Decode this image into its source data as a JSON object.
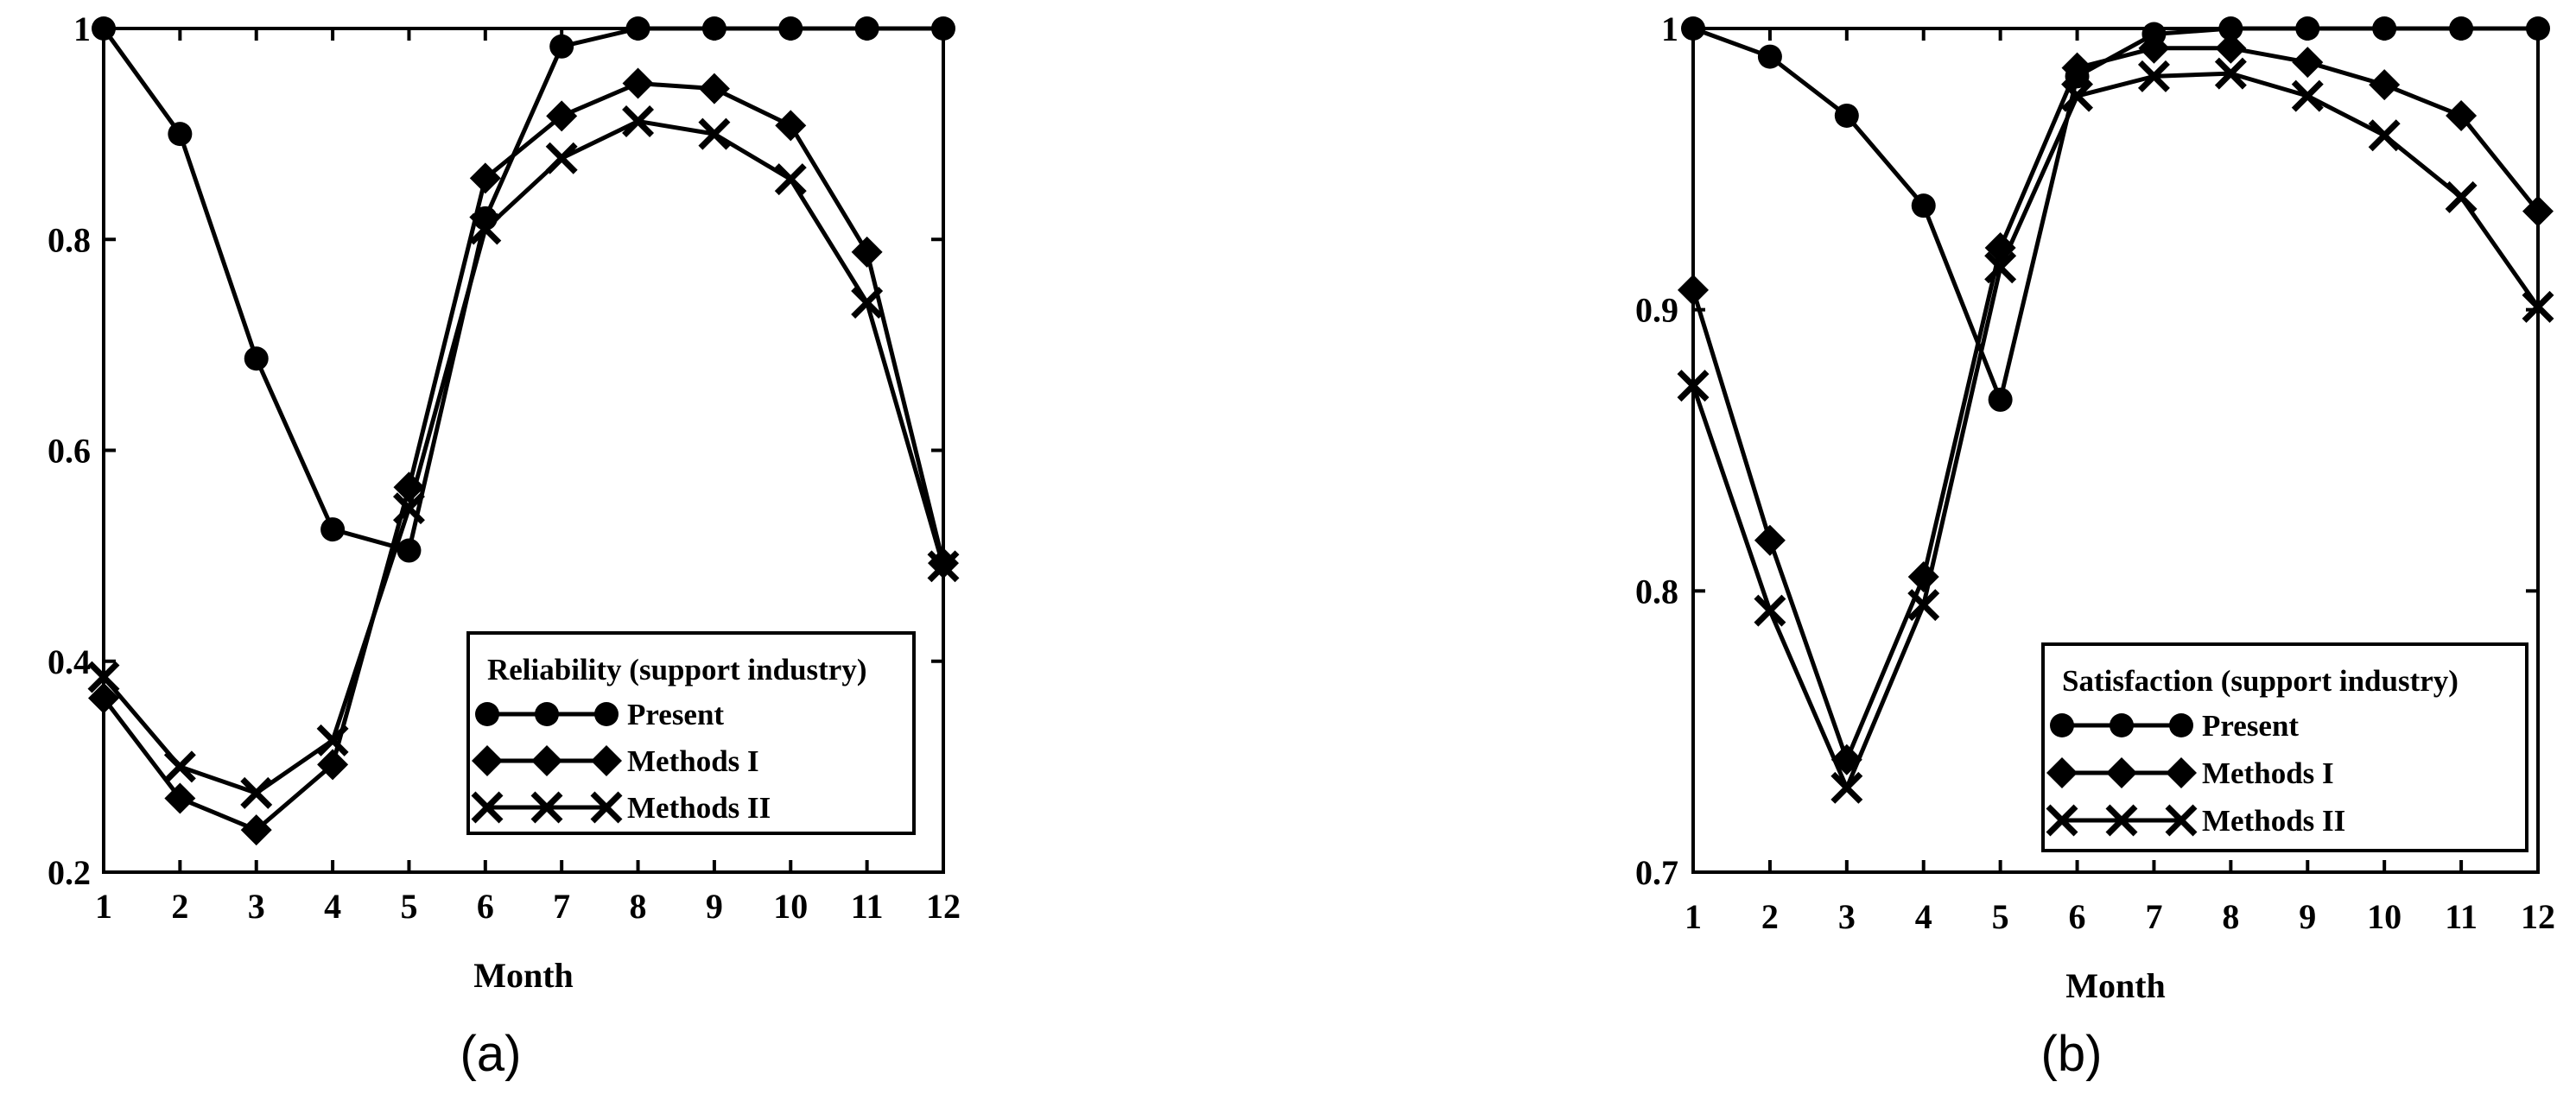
{
  "chart_data": [
    {
      "type": "line",
      "caption": "(a)",
      "xlabel": "Month",
      "ylabel": "",
      "x": [
        1,
        2,
        3,
        4,
        5,
        6,
        7,
        8,
        9,
        10,
        11,
        12
      ],
      "xticks": [
        "1",
        "2",
        "3",
        "4",
        "5",
        "6",
        "7",
        "8",
        "9",
        "10",
        "11",
        "12"
      ],
      "ylim": [
        0.2,
        1.0
      ],
      "yticks": [
        0.2,
        0.4,
        0.6,
        0.8,
        1.0
      ],
      "ytick_labels": [
        "0.2",
        "0.4",
        "0.6",
        "0.8",
        "1"
      ],
      "grid": false,
      "legend": {
        "title": "Reliability (support industry)",
        "placement": "bottom-right"
      },
      "series": [
        {
          "name": "Present",
          "marker": "circle",
          "values": [
            1.0,
            0.9,
            0.687,
            0.525,
            0.505,
            0.82,
            0.983,
            1.0,
            1.0,
            1.0,
            1.0,
            1.0
          ]
        },
        {
          "name": "Methods I",
          "marker": "diamond",
          "values": [
            0.365,
            0.27,
            0.24,
            0.302,
            0.565,
            0.858,
            0.917,
            0.948,
            0.943,
            0.908,
            0.788,
            0.493
          ]
        },
        {
          "name": "Methods II",
          "marker": "x",
          "values": [
            0.385,
            0.3,
            0.275,
            0.325,
            0.545,
            0.81,
            0.877,
            0.912,
            0.9,
            0.857,
            0.74,
            0.49
          ]
        }
      ]
    },
    {
      "type": "line",
      "caption": "(b)",
      "xlabel": "Month",
      "ylabel": "",
      "x": [
        1,
        2,
        3,
        4,
        5,
        6,
        7,
        8,
        9,
        10,
        11,
        12
      ],
      "xticks": [
        "1",
        "2",
        "3",
        "4",
        "5",
        "6",
        "7",
        "8",
        "9",
        "10",
        "11",
        "12"
      ],
      "ylim": [
        0.7,
        1.0
      ],
      "yticks": [
        0.7,
        0.8,
        0.9,
        1.0
      ],
      "ytick_labels": [
        "0.7",
        "0.8",
        "0.9",
        "1"
      ],
      "grid": false,
      "legend": {
        "title": "Satisfaction (support industry)",
        "placement": "bottom-right"
      },
      "series": [
        {
          "name": "Present",
          "marker": "circle",
          "values": [
            1.0,
            0.99,
            0.969,
            0.937,
            0.868,
            0.983,
            0.998,
            1.0,
            1.0,
            1.0,
            1.0,
            1.0
          ]
        },
        {
          "name": "Methods I",
          "marker": "diamond",
          "values": [
            0.907,
            0.818,
            0.74,
            0.805,
            0.922,
            0.986,
            0.993,
            0.993,
            0.988,
            0.98,
            0.969,
            0.935
          ]
        },
        {
          "name": "Methods II",
          "marker": "x",
          "values": [
            0.873,
            0.793,
            0.73,
            0.795,
            0.915,
            0.976,
            0.983,
            0.984,
            0.976,
            0.962,
            0.94,
            0.901
          ]
        }
      ]
    }
  ]
}
